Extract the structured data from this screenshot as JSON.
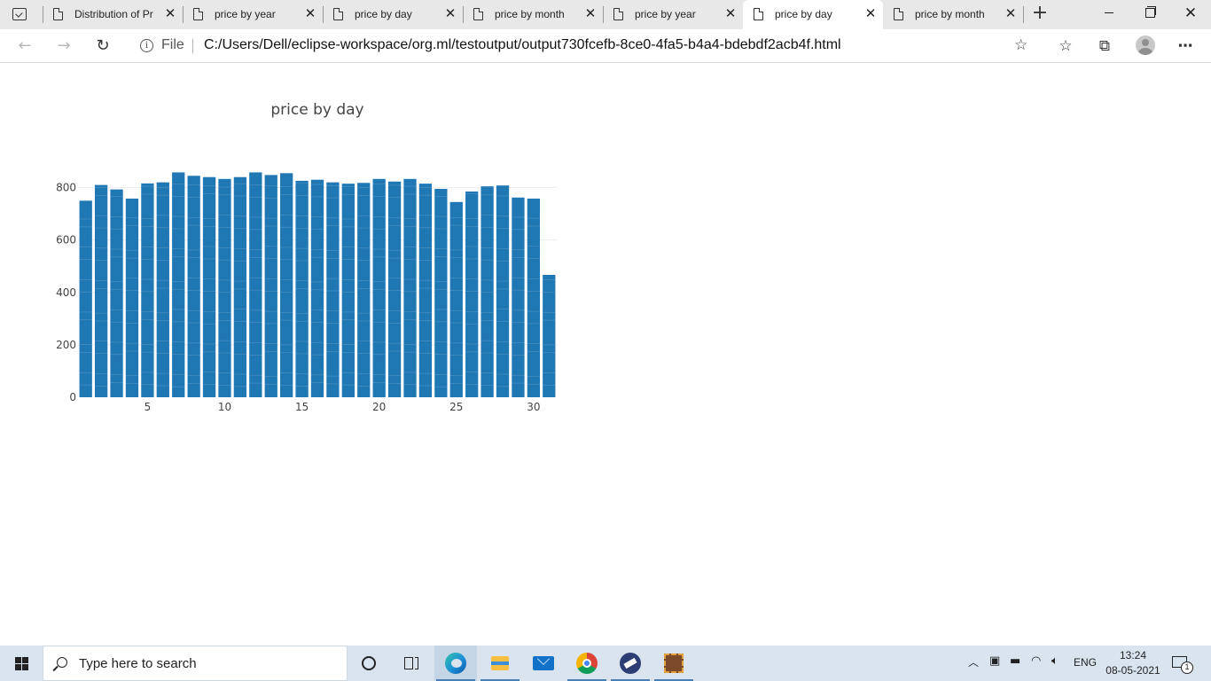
{
  "browser": {
    "tabs": [
      {
        "label": "Distribution of Pr",
        "active": false
      },
      {
        "label": "price by year",
        "active": false
      },
      {
        "label": "price by day",
        "active": false
      },
      {
        "label": "price by month",
        "active": false
      },
      {
        "label": "price by year",
        "active": false
      },
      {
        "label": "price by day",
        "active": true
      },
      {
        "label": "price by month",
        "active": false
      }
    ],
    "file_label": "File",
    "url": "C:/Users/Dell/eclipse-workspace/org.ml/testoutput/output730fcefb-8ce0-4fa5-b4a4-bdebdf2acb4f.html"
  },
  "chart_data": {
    "type": "bar",
    "title": "price by day",
    "xlabel": "",
    "ylabel": "",
    "x": [
      1,
      2,
      3,
      4,
      5,
      6,
      7,
      8,
      9,
      10,
      11,
      12,
      13,
      14,
      15,
      16,
      17,
      18,
      19,
      20,
      21,
      22,
      23,
      24,
      25,
      26,
      27,
      28,
      29,
      30,
      31
    ],
    "values": [
      750,
      810,
      793,
      758,
      816,
      820,
      858,
      845,
      840,
      833,
      840,
      858,
      848,
      855,
      826,
      830,
      820,
      815,
      818,
      833,
      823,
      833,
      815,
      795,
      745,
      785,
      805,
      808,
      762,
      758,
      467
    ],
    "xlim": [
      0.5,
      31.5
    ],
    "ylim": [
      0,
      900
    ],
    "xticks": [
      5,
      10,
      15,
      20,
      25,
      30
    ],
    "yticks": [
      0,
      200,
      400,
      600,
      800
    ],
    "bar_color": "#1f77b4",
    "grid": true,
    "stacked_segments": true
  },
  "taskbar": {
    "search_placeholder": "Type here to search",
    "language": "ENG",
    "time": "13:24",
    "date": "08-05-2021",
    "notification_count": "1"
  }
}
